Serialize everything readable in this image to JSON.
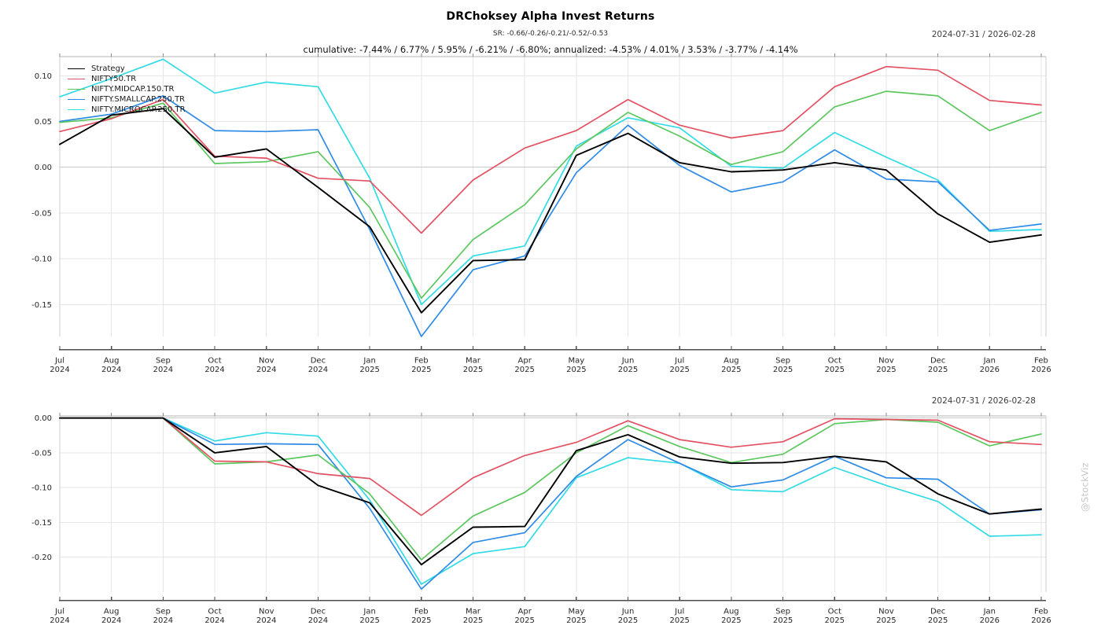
{
  "header": {
    "title": "DRChoksey Alpha Invest Returns",
    "subtitle_sr": "SR: -0.66/-0.26/-0.21/-0.52/-0.53",
    "cumulative_line": "cumulative: -7.44% / 6.77% / 5.95% / -6.21% / -6.80%; annualized: -4.53% / 4.01% / 3.53% / -3.77% / -4.14%",
    "date_range_top": "2024-07-31 / 2026-02-28",
    "date_range_bottom": "2024-07-31 / 2026-02-28"
  },
  "watermark": "@StockViz",
  "colors": {
    "strategy": "#000000",
    "nifty50": "#e25263",
    "midcap": "#5cc75f",
    "smallcap": "#2e8be6",
    "microcap": "#33dbe5",
    "gridline": "#e6e6e6",
    "zero_gridline": "#c9c9c9",
    "axis": "#4d4d4d",
    "tick_label": "#262626"
  },
  "legend": {
    "items": [
      {
        "label": "Strategy",
        "color": "#000000"
      },
      {
        "label": "NIFTY50.TR",
        "color": "#e25263"
      },
      {
        "label": "NIFTY.MIDCAP.150.TR",
        "color": "#5cc75f"
      },
      {
        "label": "NIFTY.SMALLCAP.250.TR",
        "color": "#2e8be6"
      },
      {
        "label": "NIFTY.MICROCAP.250.TR",
        "color": "#33dbe5"
      }
    ]
  },
  "chart_data": [
    {
      "name": "cumulative-returns",
      "type": "line",
      "title": "DRChoksey Alpha Invest Returns",
      "xlabel": "",
      "ylabel": "",
      "grid": true,
      "legend_position": "top-left",
      "categories": [
        "Jul 2024",
        "Aug 2024",
        "Sep 2024",
        "Oct 2024",
        "Nov 2024",
        "Dec 2024",
        "Jan 2025",
        "Feb 2025",
        "Mar 2025",
        "Apr 2025",
        "May 2025",
        "Jun 2025",
        "Jul 2025",
        "Aug 2025",
        "Sep 2025",
        "Oct 2025",
        "Nov 2025",
        "Dec 2025",
        "Jan 2026",
        "Feb 2026"
      ],
      "y_ticks": [
        0.1,
        0.05,
        0.0,
        -0.05,
        -0.1,
        -0.15
      ],
      "ylim": [
        -0.185,
        0.121
      ],
      "series": [
        {
          "name": "Strategy",
          "color": "#000000",
          "values": [
            0.025,
            0.057,
            0.064,
            0.011,
            0.02,
            -0.022,
            -0.065,
            -0.159,
            -0.102,
            -0.101,
            0.013,
            0.037,
            0.005,
            -0.005,
            -0.003,
            0.005,
            -0.003,
            -0.051,
            -0.082,
            -0.074
          ]
        },
        {
          "name": "NIFTY50.TR",
          "color": "#e25263",
          "values": [
            0.039,
            0.053,
            0.074,
            0.012,
            0.01,
            -0.012,
            -0.015,
            -0.072,
            -0.014,
            0.021,
            0.04,
            0.074,
            0.046,
            0.032,
            0.04,
            0.088,
            0.11,
            0.106,
            0.073,
            0.068
          ]
        },
        {
          "name": "NIFTY.MIDCAP.150.TR",
          "color": "#5cc75f",
          "values": [
            0.049,
            0.054,
            0.07,
            0.004,
            0.006,
            0.017,
            -0.044,
            -0.143,
            -0.079,
            -0.041,
            0.02,
            0.06,
            0.034,
            0.003,
            0.017,
            0.066,
            0.083,
            0.078,
            0.04,
            0.06
          ]
        },
        {
          "name": "NIFTY.SMALLCAP.250.TR",
          "color": "#2e8be6",
          "values": [
            0.05,
            0.058,
            0.078,
            0.04,
            0.039,
            0.041,
            -0.068,
            -0.185,
            -0.112,
            -0.097,
            -0.006,
            0.046,
            0.002,
            -0.027,
            -0.016,
            0.019,
            -0.013,
            -0.016,
            -0.069,
            -0.062
          ]
        },
        {
          "name": "NIFTY.MICROCAP.250.TR",
          "color": "#33dbe5",
          "values": [
            0.077,
            0.097,
            0.118,
            0.081,
            0.093,
            0.088,
            -0.012,
            -0.15,
            -0.097,
            -0.086,
            0.023,
            0.054,
            0.043,
            0.001,
            -0.001,
            0.038,
            0.011,
            -0.014,
            -0.07,
            -0.068
          ]
        }
      ]
    },
    {
      "name": "drawdown",
      "type": "line",
      "title": "",
      "xlabel": "",
      "ylabel": "",
      "grid": true,
      "legend_position": "none",
      "categories": [
        "Jul 2024",
        "Aug 2024",
        "Sep 2024",
        "Oct 2024",
        "Nov 2024",
        "Dec 2024",
        "Jan 2025",
        "Feb 2025",
        "Mar 2025",
        "Apr 2025",
        "May 2025",
        "Jun 2025",
        "Jul 2025",
        "Aug 2025",
        "Sep 2025",
        "Oct 2025",
        "Nov 2025",
        "Dec 2025",
        "Jan 2026",
        "Feb 2026"
      ],
      "y_ticks": [
        0.0,
        -0.05,
        -0.1,
        -0.15,
        -0.2
      ],
      "ylim": [
        -0.2503,
        0.003
      ],
      "series": [
        {
          "name": "Strategy",
          "color": "#000000",
          "values": [
            0.0,
            0.0,
            0.0,
            -0.05,
            -0.041,
            -0.097,
            -0.122,
            -0.211,
            -0.157,
            -0.156,
            -0.047,
            -0.024,
            -0.056,
            -0.065,
            -0.064,
            -0.055,
            -0.063,
            -0.109,
            -0.138,
            -0.131
          ]
        },
        {
          "name": "NIFTY50.TR",
          "color": "#e25263",
          "values": [
            0.0,
            0.0,
            0.0,
            -0.062,
            -0.063,
            -0.08,
            -0.087,
            -0.14,
            -0.086,
            -0.054,
            -0.035,
            -0.004,
            -0.031,
            -0.042,
            -0.034,
            -0.001,
            -0.002,
            -0.003,
            -0.034,
            -0.038
          ]
        },
        {
          "name": "NIFTY.MIDCAP.150.TR",
          "color": "#5cc75f",
          "values": [
            0.0,
            0.0,
            0.0,
            -0.066,
            -0.063,
            -0.053,
            -0.109,
            -0.204,
            -0.141,
            -0.107,
            -0.05,
            -0.011,
            -0.041,
            -0.064,
            -0.052,
            -0.008,
            -0.002,
            -0.006,
            -0.04,
            -0.023
          ]
        },
        {
          "name": "NIFTY.SMALLCAP.250.TR",
          "color": "#2e8be6",
          "values": [
            0.0,
            0.0,
            0.0,
            -0.038,
            -0.037,
            -0.038,
            -0.13,
            -0.246,
            -0.179,
            -0.165,
            -0.084,
            -0.031,
            -0.065,
            -0.099,
            -0.089,
            -0.055,
            -0.086,
            -0.088,
            -0.138,
            -0.132
          ]
        },
        {
          "name": "NIFTY.MICROCAP.250.TR",
          "color": "#33dbe5",
          "values": [
            0.0,
            0.0,
            0.0,
            -0.033,
            -0.021,
            -0.026,
            -0.118,
            -0.239,
            -0.195,
            -0.185,
            -0.086,
            -0.057,
            -0.065,
            -0.103,
            -0.106,
            -0.071,
            -0.097,
            -0.12,
            -0.17,
            -0.168
          ]
        }
      ]
    }
  ]
}
